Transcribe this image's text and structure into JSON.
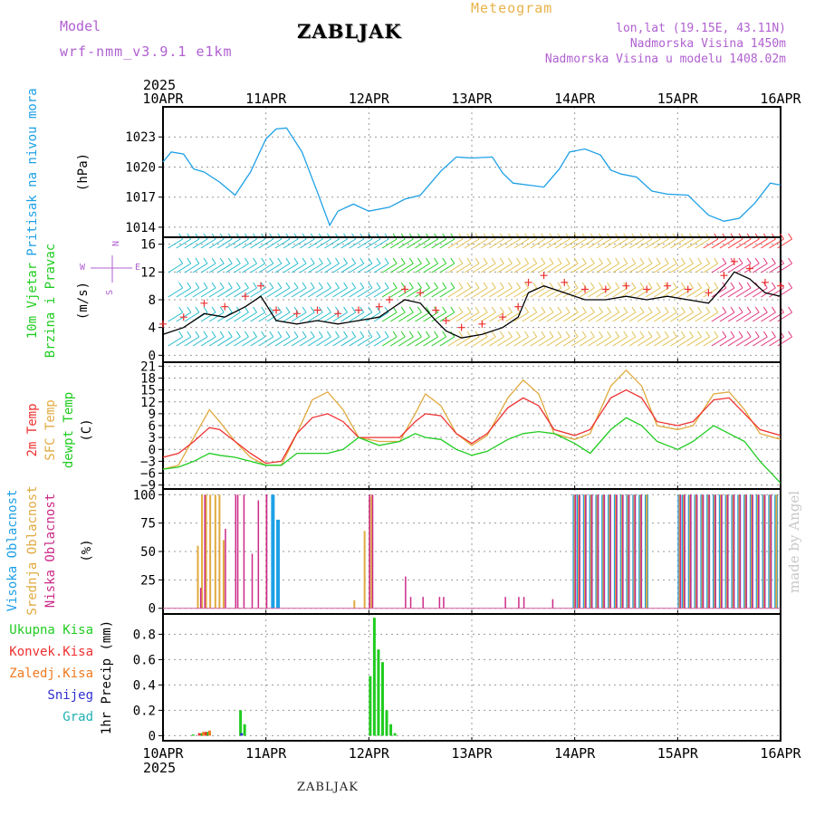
{
  "header": {
    "model_label": "Model",
    "model_value": "wrf-nmm_v3.9.1 e1km",
    "station": "ZABLJAK",
    "meteogram_label": "Meteogram",
    "coords": "lon,lat (19.15E, 43.11N)",
    "elevation": "Nadmorska Visina 1450m",
    "model_elevation": "Nadmorska Visina u modelu 1408.02m",
    "year_top": "2025",
    "year_bottom": "2025",
    "footer_station": "ZABLJAK",
    "made_by": "made by Angel"
  },
  "colors": {
    "pressure": "#1ea0e6",
    "temp2m": "#ee3030",
    "sfc": "#e0aa40",
    "dewpt": "#20cc20",
    "cloud_high": "#1ea0e6",
    "cloud_mid": "#e0aa40",
    "cloud_low": "#cc2a88",
    "precip_total": "#20cc20",
    "precip_conv": "#ee3030",
    "precip_frozen": "#f07a20",
    "precip_snow": "#3030d0",
    "precip_grad": "#20b0b0"
  },
  "chart_data": [
    {
      "type": "line",
      "panel": "pressure",
      "title": "Pritisak na nivou mora",
      "ylabel": "(hPa)",
      "ylim": [
        1013,
        1026
      ],
      "yticks": [
        1014,
        1017,
        1020,
        1023
      ],
      "x_ticks": [
        "10APR",
        "11APR",
        "12APR",
        "13APR",
        "14APR",
        "15APR",
        "16APR"
      ],
      "x": [
        0,
        0.08,
        0.2,
        0.3,
        0.4,
        0.55,
        0.7,
        0.85,
        1.0,
        1.1,
        1.2,
        1.35,
        1.5,
        1.62,
        1.7,
        1.85,
        2.0,
        2.2,
        2.35,
        2.5,
        2.7,
        2.85,
        3.0,
        3.2,
        3.3,
        3.4,
        3.55,
        3.7,
        3.85,
        3.95,
        4.1,
        4.25,
        4.35,
        4.45,
        4.6,
        4.75,
        4.9,
        5.1,
        5.3,
        5.45,
        5.6,
        5.75,
        5.9,
        6.0
      ],
      "series": [
        {
          "values": [
            1020.5,
            1021.5,
            1021.3,
            1019.8,
            1019.5,
            1018.5,
            1017.2,
            1019.5,
            1022.8,
            1023.8,
            1023.9,
            1021.5,
            1017.5,
            1014.2,
            1015.6,
            1016.3,
            1015.6,
            1016.0,
            1016.8,
            1017.2,
            1019.6,
            1021.0,
            1020.9,
            1021.0,
            1019.4,
            1018.4,
            1018.2,
            1018.0,
            1019.8,
            1021.5,
            1021.8,
            1021.2,
            1019.7,
            1019.3,
            1019.0,
            1017.6,
            1017.3,
            1017.2,
            1015.2,
            1014.6,
            1014.9,
            1016.4,
            1018.4,
            1018.2
          ]
        }
      ]
    },
    {
      "type": "line",
      "panel": "wind",
      "title": "10m Vjetar",
      "subtitle": "Brzina i Pravac",
      "ylabel": "(m/s)",
      "compass_labels": [
        "W",
        "N",
        "E",
        "S"
      ],
      "ylim": [
        -1,
        17
      ],
      "yticks": [
        0,
        4,
        8,
        12,
        16
      ],
      "x": [
        0,
        0.2,
        0.4,
        0.6,
        0.8,
        0.95,
        1.1,
        1.3,
        1.5,
        1.7,
        1.9,
        2.1,
        2.2,
        2.35,
        2.5,
        2.65,
        2.75,
        2.9,
        3.1,
        3.3,
        3.45,
        3.55,
        3.7,
        3.9,
        4.1,
        4.3,
        4.5,
        4.7,
        4.9,
        5.1,
        5.3,
        5.45,
        5.55,
        5.7,
        5.85,
        6.0
      ],
      "series": [
        {
          "name": "speed",
          "values": [
            3,
            4,
            6,
            5.5,
            7,
            8.5,
            5,
            4.5,
            5,
            4.5,
            5,
            5.5,
            6.5,
            8,
            7.5,
            5,
            3.5,
            2.5,
            3,
            4,
            5.5,
            9,
            10,
            9,
            8,
            8,
            8.5,
            8,
            8.5,
            8,
            7.5,
            10,
            12,
            11,
            9,
            8.5
          ]
        }
      ]
    },
    {
      "type": "line",
      "panel": "temperature",
      "title": "2m Temp",
      "subtitle": "SFC Temp",
      "extra_label": "dewpt Temp",
      "ylabel": "(C)",
      "ylim": [
        -10,
        22
      ],
      "yticks": [
        -9,
        -6,
        -3,
        0,
        3,
        6,
        9,
        12,
        15,
        18,
        21
      ],
      "x": [
        0,
        0.15,
        0.3,
        0.45,
        0.55,
        0.7,
        0.85,
        1.0,
        1.15,
        1.3,
        1.45,
        1.6,
        1.75,
        1.9,
        2.1,
        2.3,
        2.45,
        2.55,
        2.7,
        2.85,
        3.0,
        3.15,
        3.35,
        3.5,
        3.65,
        3.8,
        4.0,
        4.15,
        4.35,
        4.5,
        4.65,
        4.8,
        5.0,
        5.15,
        5.35,
        5.5,
        5.65,
        5.8,
        6.0
      ],
      "series": [
        {
          "name": "2m Temp",
          "values": [
            -2,
            -1,
            2,
            5.5,
            5,
            2,
            -1,
            -3.5,
            -3,
            4,
            8,
            9,
            7,
            3,
            3,
            3,
            7,
            9,
            8.5,
            4,
            1.5,
            4,
            10.5,
            13,
            11,
            5,
            3.5,
            5,
            13,
            15,
            13,
            7,
            6,
            7,
            12.5,
            13,
            9,
            5,
            3.5
          ]
        },
        {
          "name": "SFC Temp",
          "values": [
            -5,
            -4,
            3,
            10,
            7,
            2,
            -2,
            -4,
            -4,
            4,
            12.5,
            14.5,
            10,
            3,
            2,
            2,
            9,
            14,
            11,
            4,
            1,
            3.5,
            13,
            17.5,
            14,
            4,
            2.5,
            4,
            16,
            20,
            16,
            6,
            5,
            6,
            14,
            14.5,
            10,
            4,
            2.5
          ]
        },
        {
          "name": "dewpt Temp",
          "values": [
            -5,
            -4.5,
            -3,
            -1,
            -1.5,
            -2,
            -3,
            -4,
            -4,
            -1,
            -1,
            -1,
            0,
            3,
            1,
            2,
            4,
            3,
            2.5,
            0,
            -1.5,
            -0.5,
            2.5,
            4,
            4.5,
            4,
            1.5,
            -1,
            5,
            8,
            6,
            2,
            0,
            2,
            6,
            4,
            2,
            -3,
            -8.5
          ]
        }
      ]
    },
    {
      "type": "bar",
      "panel": "clouds",
      "title": "Visoka Oblacnost",
      "subtitle": "Srednja Oblacnost",
      "extra_label": "Niska Oblacnost",
      "ylabel": "(%)",
      "ylim": [
        -5,
        105
      ],
      "yticks": [
        0,
        25,
        50,
        75,
        100
      ],
      "series": [
        {
          "name": "Visoka Oblacnost",
          "x": [
            1.05,
            1.1,
            3.98,
            4.02,
            4.08,
            4.14,
            4.2,
            4.26,
            4.32,
            4.38,
            4.44,
            4.5,
            4.56,
            4.62,
            4.68,
            5.0,
            5.04,
            5.1,
            5.16,
            5.22,
            5.28,
            5.34,
            5.4,
            5.46,
            5.52,
            5.58,
            5.64,
            5.7,
            5.76,
            5.82,
            5.88,
            5.94
          ],
          "values": [
            100,
            78,
            100,
            100,
            100,
            100,
            100,
            100,
            100,
            100,
            100,
            100,
            100,
            100,
            100,
            100,
            100,
            100,
            100,
            100,
            100,
            100,
            100,
            100,
            100,
            100,
            100,
            100,
            100,
            100,
            100,
            100
          ]
        },
        {
          "name": "Srednja Oblacnost",
          "x": [
            0.33,
            0.37,
            0.41,
            0.45,
            0.5,
            0.54,
            0.58,
            1.85,
            1.95,
            2.0,
            2.02,
            3.99,
            4.03,
            4.09,
            4.15,
            4.21,
            4.27,
            4.33,
            4.39,
            4.45,
            4.51,
            4.57,
            4.63,
            4.69,
            5.01,
            5.05,
            5.11,
            5.17,
            5.23,
            5.29,
            5.35,
            5.41,
            5.47,
            5.53,
            5.59,
            5.65,
            5.71,
            5.77,
            5.83,
            5.89,
            5.95
          ],
          "values": [
            55,
            100,
            100,
            100,
            100,
            100,
            60,
            7,
            68,
            98,
            100,
            100,
            100,
            100,
            100,
            100,
            100,
            100,
            100,
            100,
            100,
            100,
            100,
            100,
            100,
            100,
            100,
            100,
            100,
            100,
            100,
            100,
            100,
            100,
            100,
            100,
            100,
            100,
            100,
            100,
            100
          ]
        },
        {
          "name": "Niska Oblacnost",
          "x": [
            0.36,
            0.4,
            0.6,
            0.7,
            0.72,
            0.78,
            0.86,
            0.92,
            1.0,
            1.0,
            2.0,
            2.03,
            2.35,
            2.4,
            2.52,
            2.68,
            2.72,
            3.32,
            3.45,
            3.5,
            3.78,
            4.0,
            4.04,
            4.1,
            4.16,
            4.22,
            4.28,
            4.34,
            4.4,
            4.46,
            4.52,
            4.58,
            4.64,
            5.02,
            5.06,
            5.12,
            5.18,
            5.24,
            5.3,
            5.36,
            5.42,
            5.48,
            5.54,
            5.6,
            5.66,
            5.72,
            5.78,
            5.84,
            5.9
          ],
          "values": [
            18,
            100,
            70,
            100,
            100,
            100,
            48,
            95,
            100,
            100,
            100,
            100,
            28,
            10,
            10,
            10,
            10,
            10,
            10,
            10,
            8,
            100,
            100,
            100,
            100,
            100,
            100,
            100,
            100,
            100,
            100,
            100,
            100,
            100,
            100,
            100,
            100,
            100,
            100,
            100,
            100,
            100,
            100,
            100,
            100,
            100,
            100,
            100,
            100
          ]
        }
      ]
    },
    {
      "type": "bar",
      "panel": "precip",
      "ylabel": "1hr Precip (mm)",
      "legend": [
        "Ukupna Kisa",
        "Konvek.Kisa",
        "Zaledj.Kisa",
        "Snijeg",
        "Grad"
      ],
      "ylim": [
        -0.04,
        0.96
      ],
      "yticks": [
        0,
        0.2,
        0.4,
        0.6,
        0.8
      ],
      "series": [
        {
          "name": "Ukupna Kisa",
          "x": [
            0.28,
            0.36,
            0.42,
            0.74,
            0.78,
            2.0,
            2.04,
            2.08,
            2.12,
            2.16,
            2.2,
            2.24
          ],
          "values": [
            0.01,
            0.02,
            0.03,
            0.2,
            0.09,
            0.47,
            0.93,
            0.68,
            0.58,
            0.2,
            0.09,
            0.02
          ]
        },
        {
          "name": "Konvek.Kisa",
          "x": [
            0.34,
            0.4
          ],
          "values": [
            0.02,
            0.03
          ]
        },
        {
          "name": "Zaledj.Kisa",
          "x": [
            0.38,
            0.44
          ],
          "values": [
            0.03,
            0.04
          ]
        },
        {
          "name": "Snijeg",
          "x": [
            0.75
          ],
          "values": [
            0.02
          ]
        }
      ]
    }
  ]
}
